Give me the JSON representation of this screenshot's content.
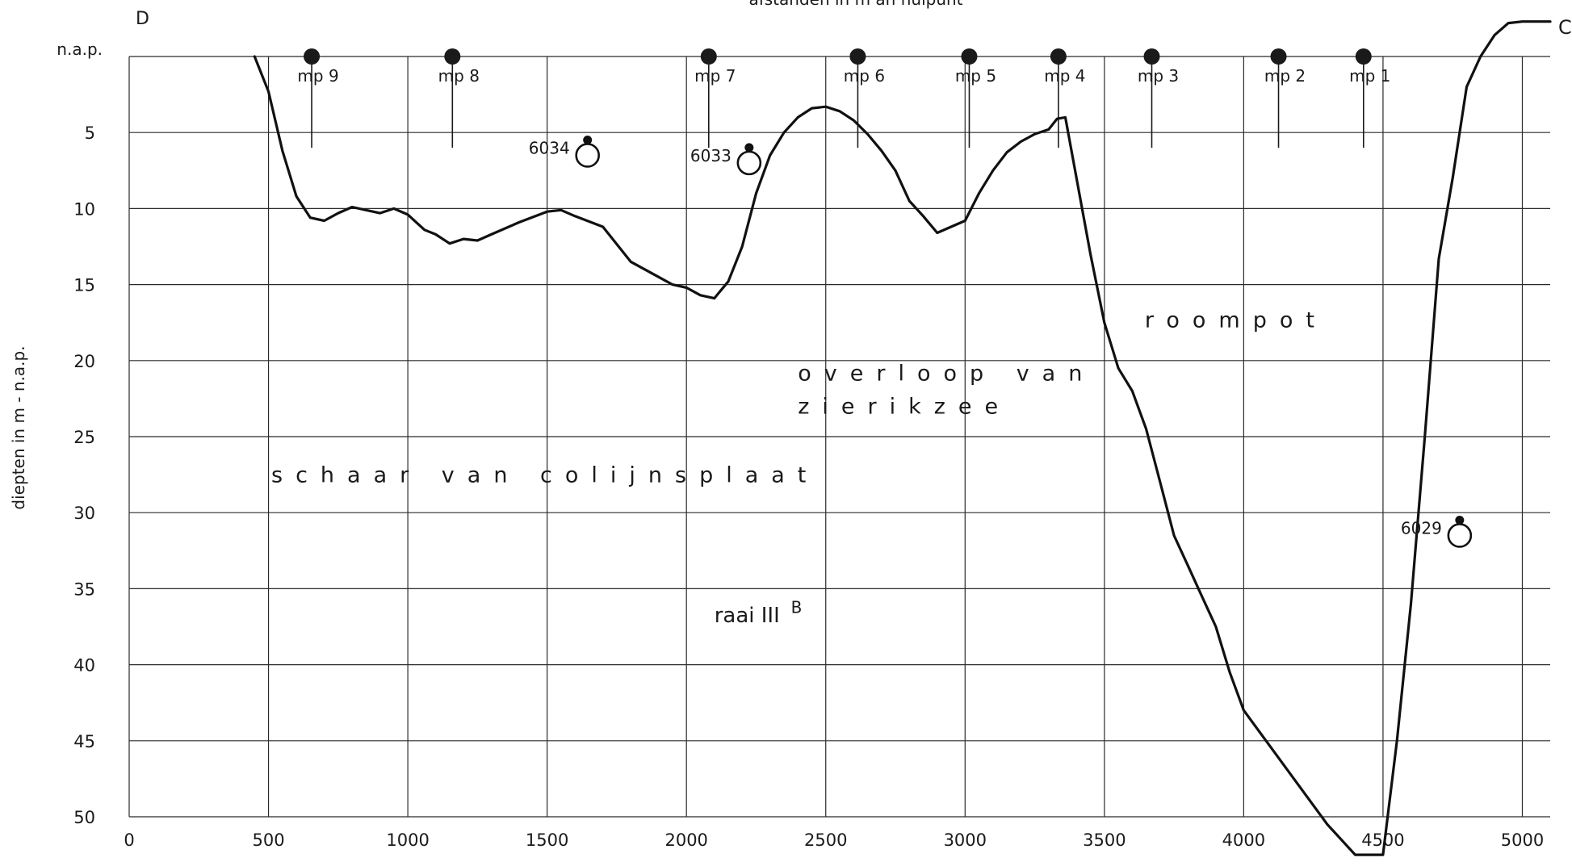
{
  "chart_data": {
    "type": "line",
    "title": "afstanden in m an nulpunt",
    "corner_left": "D",
    "corner_right": "C",
    "ylabel": "diepten in m - n.a.p.",
    "y_top_label": "n.a.p.",
    "xlim": [
      0,
      5100
    ],
    "ylim": [
      0,
      50
    ],
    "x_ticks": [
      0,
      500,
      1000,
      1500,
      2000,
      2500,
      3000,
      3500,
      4000,
      4500,
      5000
    ],
    "x_tick_labels": [
      "0",
      "500",
      "1000",
      "1500",
      "2000",
      "2500",
      "3000",
      "3500",
      "4000",
      "4500",
      "5000"
    ],
    "y_ticks": [
      5,
      10,
      15,
      20,
      25,
      30,
      35,
      40,
      45,
      50
    ],
    "y_tick_labels": [
      "5",
      "10",
      "15",
      "20",
      "25",
      "30",
      "35",
      "40",
      "45",
      "50"
    ],
    "grid": true,
    "series": [
      {
        "x": [
          450,
          500,
          550,
          600,
          650,
          700,
          750,
          800,
          850,
          900,
          950,
          1000,
          1030,
          1060,
          1100,
          1150,
          1200,
          1250,
          1300,
          1400,
          1500,
          1550,
          1600,
          1700,
          1800,
          1900,
          1950,
          2000,
          2050,
          2100,
          2150,
          2200,
          2250,
          2300,
          2350,
          2400,
          2450,
          2500,
          2550,
          2600,
          2650,
          2700,
          2750,
          2800,
          2850,
          2900,
          2950,
          3000,
          3050,
          3100,
          3150,
          3200,
          3250,
          3300,
          3330,
          3360,
          3400,
          3450,
          3500,
          3550,
          3600,
          3650,
          3700,
          3750,
          3800,
          3850,
          3900,
          3950,
          4000,
          4100,
          4200,
          4300,
          4400,
          4500,
          4550,
          4600,
          4650,
          4700,
          4750,
          4800,
          4850,
          4900,
          4950,
          5000,
          5050,
          5080,
          5100
        ],
        "y": [
          0,
          2.3,
          6.2,
          9.2,
          10.6,
          10.8,
          10.3,
          9.9,
          10.1,
          10.3,
          10.0,
          10.4,
          10.9,
          11.4,
          11.7,
          12.3,
          12.0,
          12.1,
          11.7,
          10.9,
          10.2,
          10.1,
          10.5,
          11.2,
          13.5,
          14.5,
          15.0,
          15.2,
          15.7,
          15.9,
          14.8,
          12.5,
          9.0,
          6.5,
          5.0,
          4.0,
          3.4,
          3.3,
          3.6,
          4.2,
          5.1,
          6.2,
          7.5,
          9.5,
          10.5,
          11.6,
          11.2,
          10.8,
          9.0,
          7.5,
          6.3,
          5.6,
          5.1,
          4.8,
          4.1,
          4.0,
          8.0,
          13.0,
          17.5,
          20.5,
          22.0,
          24.5,
          28.0,
          31.5,
          33.5,
          35.5,
          37.5,
          40.5,
          43.0,
          45.5,
          48.0,
          50.5,
          52.5,
          52.5,
          45.0,
          36.0,
          25.0,
          13.3,
          8.0,
          2.0,
          0.0,
          -1.4,
          -2.2,
          -2.3,
          -2.3,
          -2.3,
          -2.3
        ]
      }
    ],
    "measure_points": [
      {
        "label": "mp 9",
        "x": 655
      },
      {
        "label": "mp 8",
        "x": 1160
      },
      {
        "label": "mp 7",
        "x": 2080
      },
      {
        "label": "mp 6",
        "x": 2615
      },
      {
        "label": "mp 5",
        "x": 3015
      },
      {
        "label": "mp 4",
        "x": 3335
      },
      {
        "label": "mp 3",
        "x": 3670
      },
      {
        "label": "mp 2",
        "x": 4125
      },
      {
        "label": "mp 1",
        "x": 4430
      }
    ],
    "markers": [
      {
        "label": "6034",
        "x": 1645,
        "y": 6.5
      },
      {
        "label": "6033",
        "x": 2225,
        "y": 7.0
      },
      {
        "label": "6029",
        "x": 4775,
        "y": 31.5
      }
    ],
    "annotations": [
      {
        "text": "schaar van colijnsplaat",
        "x": 510,
        "y": 28,
        "size": "big"
      },
      {
        "text": "overloop van",
        "x": 2400,
        "y": 21.3,
        "size": "big"
      },
      {
        "text": "zierikzee",
        "x": 2400,
        "y": 23.5,
        "size": "big"
      },
      {
        "text": "roompot",
        "x": 3645,
        "y": 17.8,
        "size": "big"
      },
      {
        "text": "raai III",
        "x": 2100,
        "y": 37.2,
        "size": "mid"
      },
      {
        "text": "B",
        "x": 2375,
        "y": 36.6,
        "size": "small"
      }
    ]
  }
}
